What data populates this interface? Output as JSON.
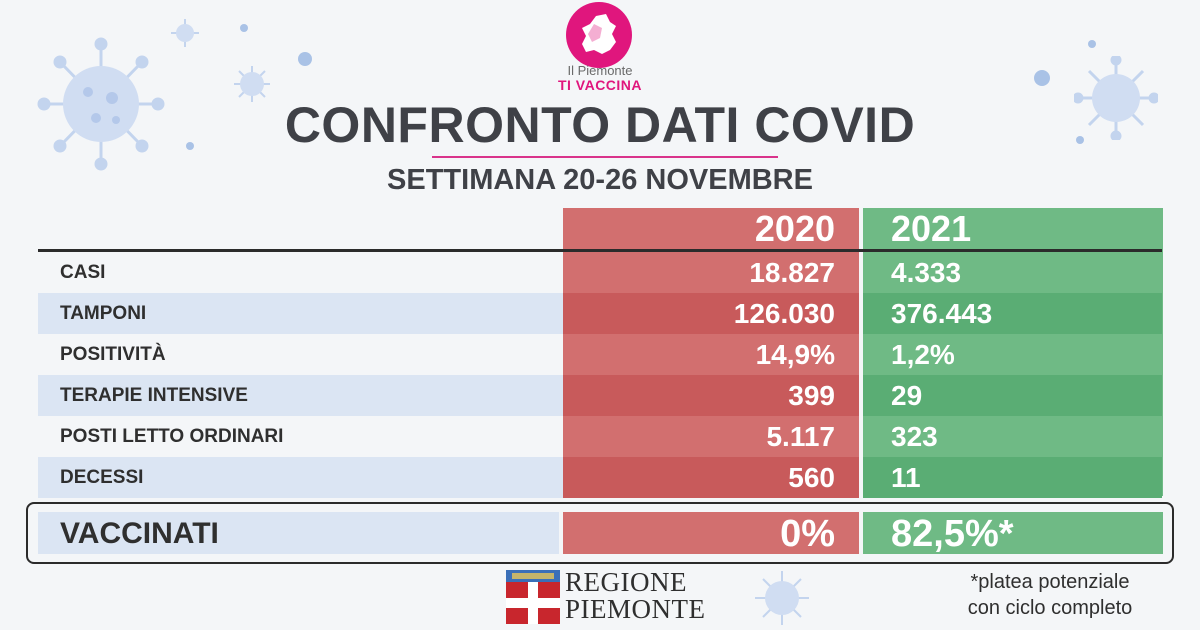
{
  "logo": {
    "line1": "Il Piemonte",
    "line2": "TI VACCINA"
  },
  "title": "CONFRONTO DATI COVID",
  "subtitle": "SETTIMANA 20-26 NOVEMBRE",
  "columns": {
    "year_a": "2020",
    "year_b": "2021"
  },
  "rows": [
    {
      "label": "CASI",
      "v2020": "18.827",
      "v2021": "4.333"
    },
    {
      "label": "TAMPONI",
      "v2020": "126.030",
      "v2021": "376.443"
    },
    {
      "label": "POSITIVITÀ",
      "v2020": "14,9%",
      "v2021": "1,2%"
    },
    {
      "label": "TERAPIE INTENSIVE",
      "v2020": "399",
      "v2021": "29"
    },
    {
      "label": "POSTI LETTO ORDINARI",
      "v2020": "5.117",
      "v2021": "323"
    },
    {
      "label": "DECESSI",
      "v2020": "560",
      "v2021": "11"
    }
  ],
  "vaccinati": {
    "label": "VACCINATI",
    "v2020": "0%",
    "v2021": "82,5%*"
  },
  "footer": {
    "region_line1": "REGIONE",
    "region_line2": "PIEMONTE",
    "note_line1": "*platea potenziale",
    "note_line2": "con ciclo completo"
  },
  "colors": {
    "col_2020": "#d26f6f",
    "col_2021": "#6fba85",
    "accent_pink": "#e0167d",
    "title_grey": "#3f4147"
  }
}
